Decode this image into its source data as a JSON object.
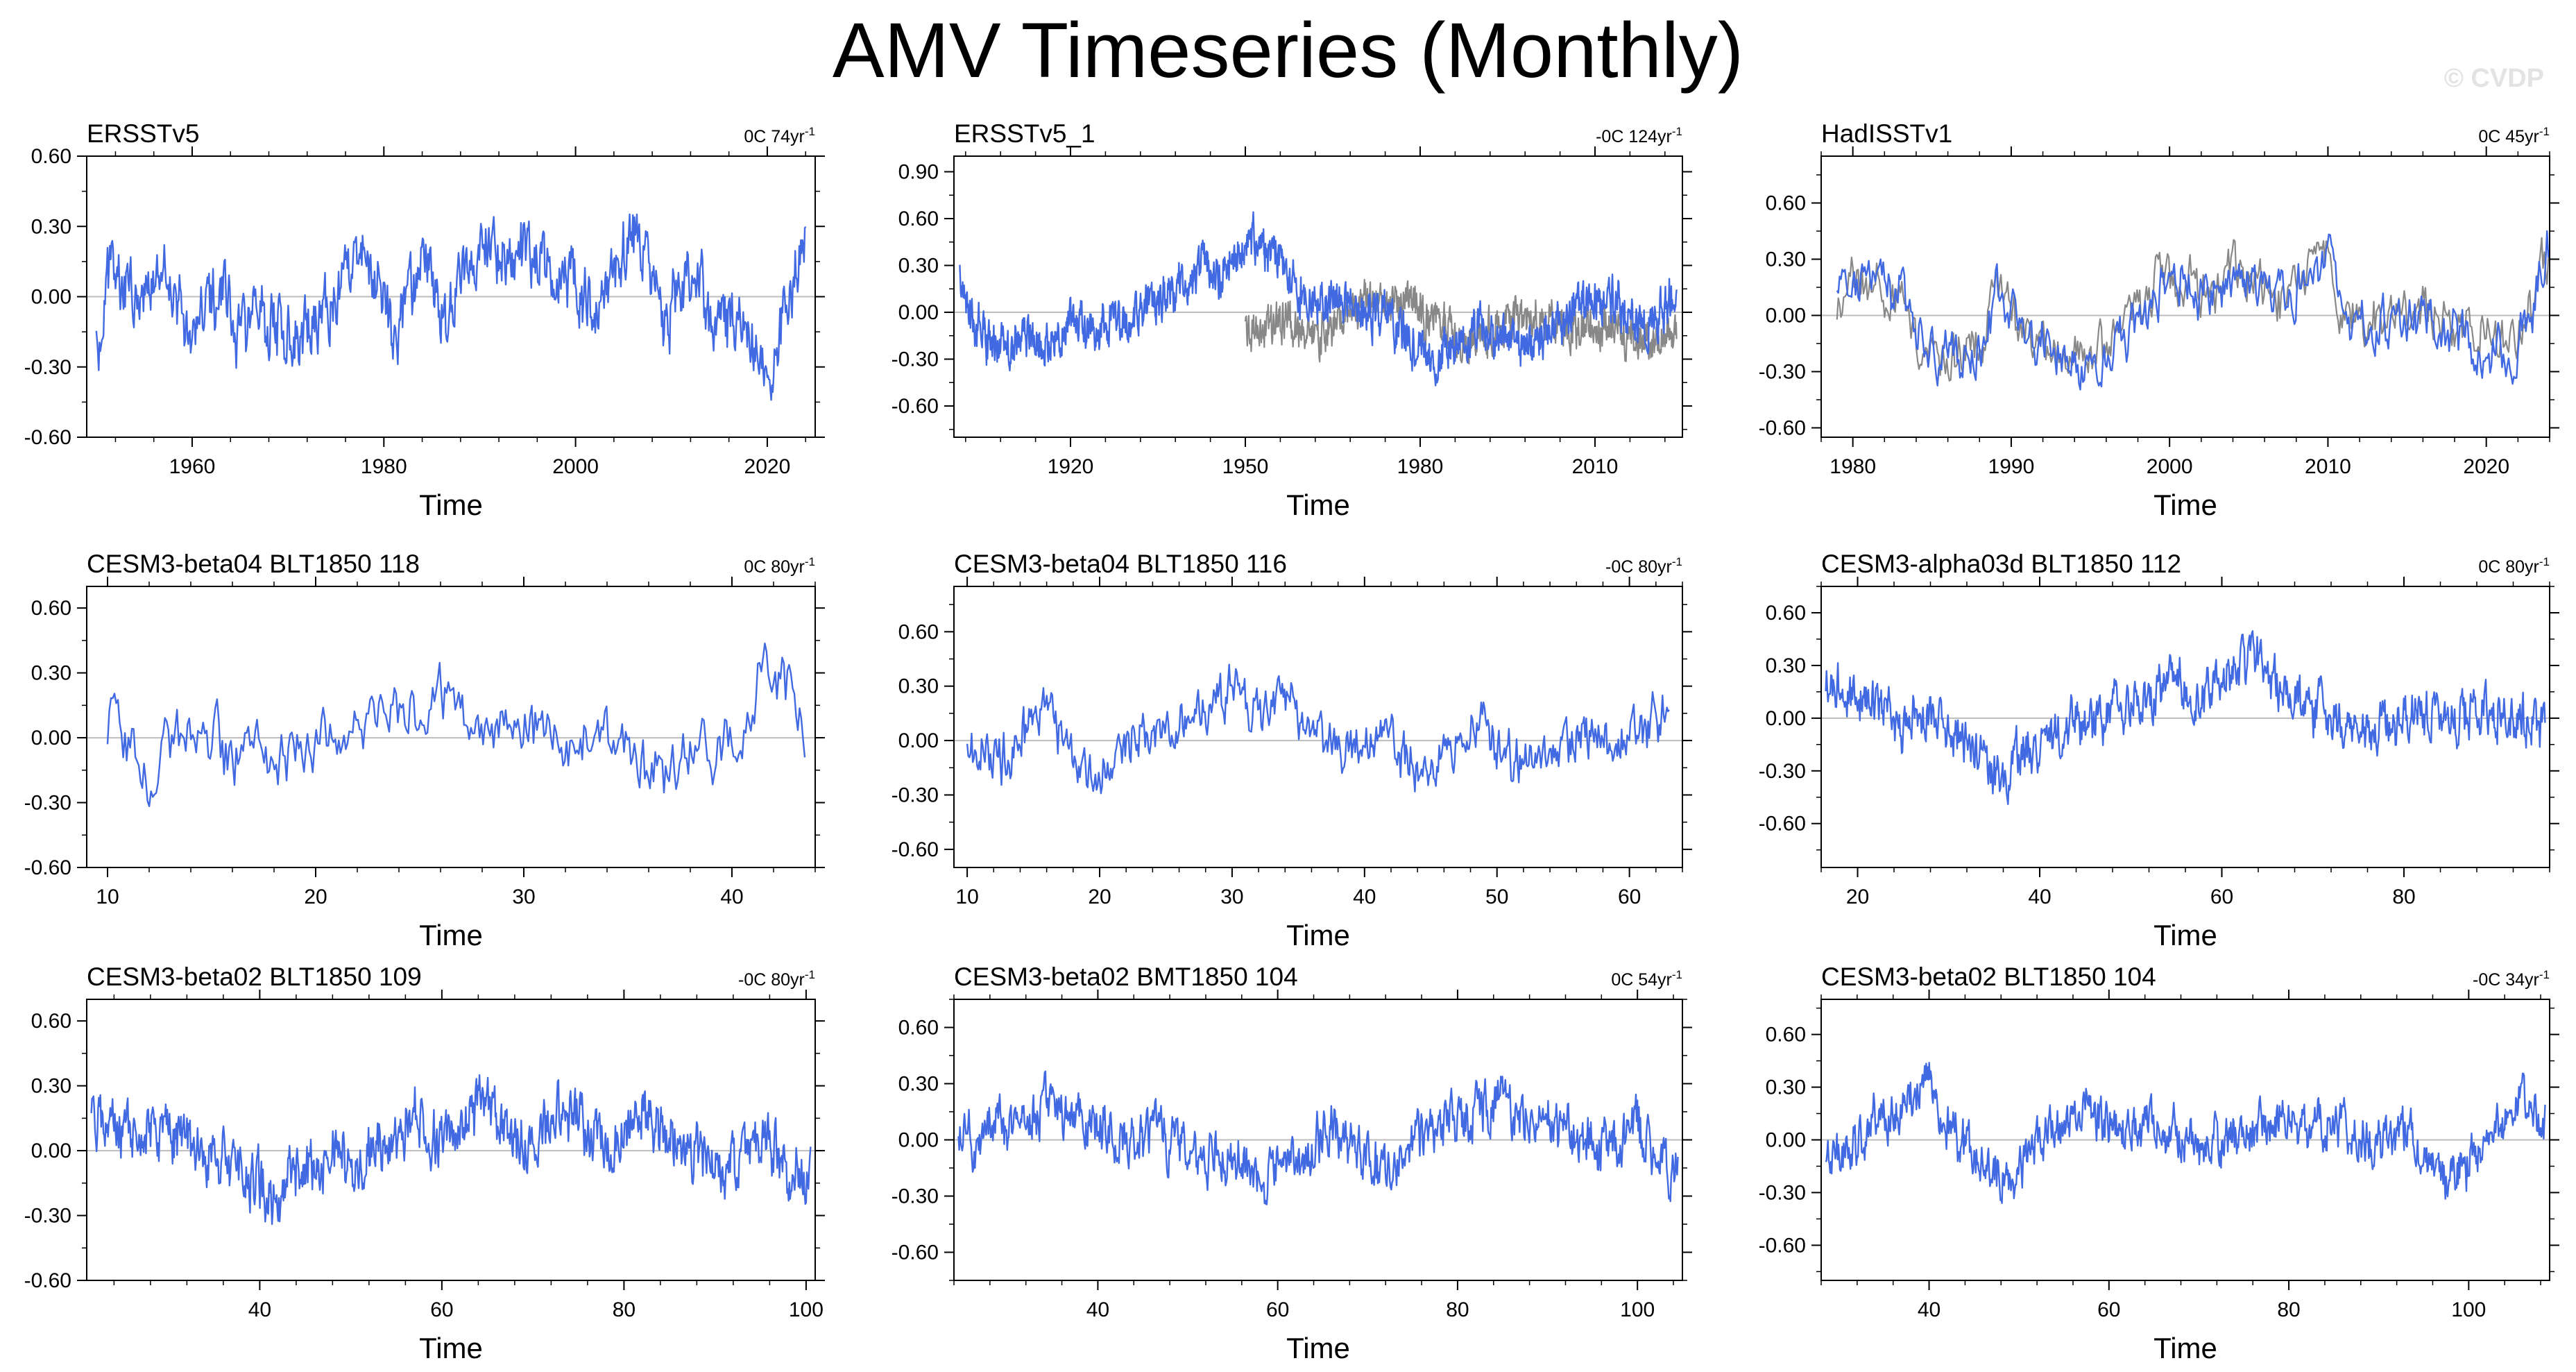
{
  "title": "AMV Timeseries (Monthly)",
  "watermark": "© CVDP",
  "colors": {
    "series": "#4169e1",
    "obs_secondary": "#888888",
    "zero_line": "#bdbdbd",
    "axis": "#000000"
  },
  "chart_data": [
    {
      "type": "line",
      "title": "ERSSTv5",
      "trend_text": "0C 74yr",
      "trend_sup": "-1",
      "xlabel": "Time",
      "ylabel": "",
      "xlim": [
        1949,
        2025
      ],
      "ylim": [
        -0.6,
        0.6
      ],
      "xticks": [
        1960,
        1980,
        2000,
        2020
      ],
      "xtick_labels": [
        "1960",
        "1980",
        "2000",
        "2020"
      ],
      "yticks": [
        -0.6,
        -0.3,
        0.0,
        0.3,
        0.6
      ],
      "ytick_labels": [
        "-0.60",
        "-0.30",
        "0.00",
        "0.30",
        "0.60"
      ],
      "series": [
        {
          "name": "ERSSTv5",
          "x_start": 1950,
          "x_end": 2024,
          "anchors": [
            -0.2,
            0.12,
            0.05,
            -0.05,
            0.1,
            0.0,
            -0.2,
            -0.1,
            0.05,
            -0.15,
            -0.12,
            -0.1,
            -0.15,
            -0.2,
            -0.1,
            0.0,
            0.12,
            0.18,
            0.05,
            -0.18,
            0.05,
            0.15,
            -0.1,
            0.05,
            0.2,
            0.25,
            0.15,
            0.2,
            0.15,
            0.08,
            0.1,
            0.0,
            -0.05,
            0.15,
            0.25,
            0.15,
            -0.1,
            0.05,
            0.05,
            -0.1,
            -0.12,
            -0.15,
            -0.2,
            -0.25,
            0.0,
            0.3
          ]
        }
      ]
    },
    {
      "type": "line",
      "title": "ERSSTv5_1",
      "trend_text": "-0C 124yr",
      "trend_sup": "-1",
      "xlabel": "Time",
      "ylabel": "",
      "xlim": [
        1900,
        2025
      ],
      "ylim": [
        -0.8,
        1.0
      ],
      "xticks": [
        1920,
        1950,
        1980,
        2010
      ],
      "xtick_labels": [
        "1920",
        "1950",
        "1980",
        "2010"
      ],
      "yticks": [
        -0.6,
        -0.3,
        0.0,
        0.3,
        0.6,
        0.9
      ],
      "ytick_labels": [
        "-0.60",
        "-0.30",
        "0.00",
        "0.30",
        "0.60",
        "0.90"
      ],
      "series": [
        {
          "name": "ERSSTv5_1",
          "x_start": 1901,
          "x_end": 2024,
          "anchors": [
            0.2,
            -0.1,
            -0.2,
            -0.25,
            -0.15,
            -0.2,
            -0.15,
            -0.05,
            -0.1,
            -0.05,
            -0.1,
            0.0,
            0.05,
            0.15,
            0.2,
            0.3,
            0.25,
            0.4,
            0.45,
            0.4,
            0.3,
            0.1,
            0.05,
            0.1,
            0.05,
            0.0,
            -0.05,
            -0.1,
            -0.2,
            -0.3,
            -0.25,
            -0.15,
            -0.1,
            -0.2,
            -0.15,
            -0.25,
            -0.15,
            -0.1,
            0.05,
            0.05,
            0.1,
            0.0,
            -0.1,
            0.0,
            0.15
          ]
        },
        {
          "name": "ERSSTv5_1 (secondary)",
          "x_start": 1950,
          "x_end": 2024,
          "anchors": [
            -0.15,
            -0.1,
            -0.05,
            -0.1,
            -0.15,
            -0.05,
            0.0,
            0.05,
            0.05,
            0.05,
            -0.05,
            -0.1,
            -0.15,
            -0.15,
            -0.1,
            -0.05,
            -0.05,
            -0.05,
            -0.1,
            -0.1,
            -0.1,
            -0.15,
            -0.15,
            -0.2,
            -0.15
          ]
        }
      ]
    },
    {
      "type": "line",
      "title": "HadISSTv1",
      "trend_text": "0C 45yr",
      "trend_sup": "-1",
      "xlabel": "Time",
      "ylabel": "",
      "xlim": [
        1978,
        2024
      ],
      "ylim": [
        -0.65,
        0.85
      ],
      "xticks": [
        1980,
        1990,
        2000,
        2010,
        2020
      ],
      "xtick_labels": [
        "1980",
        "1990",
        "2000",
        "2010",
        "2020"
      ],
      "yticks": [
        -0.6,
        -0.3,
        0.0,
        0.3,
        0.6
      ],
      "ytick_labels": [
        "-0.60",
        "-0.30",
        "0.00",
        "0.30",
        "0.60"
      ],
      "series": [
        {
          "name": "HadISSTv1",
          "x_start": 1979,
          "x_end": 2024,
          "anchors": [
            0.05,
            0.15,
            0.2,
            0.1,
            -0.1,
            -0.2,
            -0.25,
            -0.2,
            0.1,
            -0.05,
            -0.15,
            -0.2,
            -0.3,
            -0.25,
            -0.1,
            -0.05,
            0.15,
            0.25,
            0.1,
            0.15,
            0.2,
            0.1,
            0.05,
            0.15,
            0.3,
            0.0,
            -0.1,
            -0.05,
            -0.05,
            0.0,
            -0.05,
            -0.1,
            -0.15,
            -0.2,
            0.0,
            0.4
          ]
        },
        {
          "name": "HadISSTv1 (secondary)",
          "x_start": 1979,
          "x_end": 2024,
          "anchors": [
            0.1,
            0.2,
            0.15,
            0.05,
            -0.15,
            -0.2,
            -0.2,
            -0.15,
            0.15,
            -0.05,
            -0.1,
            -0.2,
            -0.25,
            -0.2,
            -0.05,
            0.0,
            0.2,
            0.25,
            0.15,
            0.2,
            0.25,
            0.15,
            0.1,
            0.2,
            0.3,
            0.05,
            -0.05,
            0.0,
            0.0,
            0.05,
            0.0,
            -0.05,
            -0.1,
            -0.15,
            0.05,
            0.3
          ]
        }
      ]
    },
    {
      "type": "line",
      "title": "CESM3-beta04 BLT1850 118",
      "trend_text": "0C 80yr",
      "trend_sup": "-1",
      "xlabel": "Time",
      "ylabel": "",
      "xlim": [
        9,
        44
      ],
      "ylim": [
        -0.6,
        0.7
      ],
      "xticks": [
        10,
        20,
        30,
        40
      ],
      "xtick_labels": [
        "10",
        "20",
        "30",
        "40"
      ],
      "yticks": [
        -0.6,
        -0.3,
        0.0,
        0.3,
        0.6
      ],
      "ytick_labels": [
        "-0.60",
        "-0.30",
        "0.00",
        "0.30",
        "0.60"
      ],
      "series": [
        {
          "name": "CESM3-beta04 BLT1850 118",
          "x_start": 10,
          "x_end": 43.5,
          "anchors": [
            0.05,
            0.0,
            -0.15,
            -0.05,
            0.05,
            0.0,
            -0.1,
            -0.05,
            -0.15,
            -0.05,
            0.0,
            0.05,
            0.05,
            0.15,
            0.1,
            0.15,
            0.2,
            0.1,
            0.05,
            0.1,
            0.05,
            0.0,
            -0.05,
            0.0,
            -0.05,
            -0.1,
            -0.15,
            -0.1,
            -0.05,
            -0.05,
            0.05,
            0.3,
            0.25,
            0.05
          ]
        }
      ]
    },
    {
      "type": "line",
      "title": "CESM3-beta04 BLT1850 116",
      "trend_text": "-0C 80yr",
      "trend_sup": "-1",
      "xlabel": "Time",
      "ylabel": "",
      "xlim": [
        9,
        64
      ],
      "ylim": [
        -0.7,
        0.85
      ],
      "xticks": [
        10,
        20,
        30,
        40,
        50,
        60
      ],
      "xtick_labels": [
        "10",
        "20",
        "30",
        "40",
        "50",
        "60"
      ],
      "yticks": [
        -0.6,
        -0.3,
        0.0,
        0.3,
        0.6
      ],
      "ytick_labels": [
        "-0.60",
        "-0.30",
        "0.00",
        "0.30",
        "0.60"
      ],
      "series": [
        {
          "name": "CESM3-beta04 BLT1850 116",
          "x_start": 10,
          "x_end": 63,
          "anchors": [
            0.0,
            -0.05,
            -0.1,
            0.05,
            0.15,
            0.05,
            -0.25,
            -0.1,
            -0.05,
            0.05,
            0.0,
            0.1,
            0.15,
            0.2,
            0.3,
            0.15,
            0.15,
            0.2,
            0.1,
            0.05,
            -0.05,
            -0.05,
            0.0,
            -0.1,
            -0.15,
            -0.05,
            0.0,
            0.05,
            -0.05,
            -0.1,
            -0.2,
            -0.1,
            0.0,
            0.05,
            0.0,
            0.05,
            0.1,
            0.15
          ]
        }
      ]
    },
    {
      "type": "line",
      "title": "CESM3-alpha03d BLT1850 112",
      "trend_text": "0C 80yr",
      "trend_sup": "-1",
      "xlabel": "Time",
      "ylabel": "",
      "xlim": [
        16,
        96
      ],
      "ylim": [
        -0.85,
        0.75
      ],
      "xticks": [
        20,
        40,
        60,
        80
      ],
      "xtick_labels": [
        "20",
        "40",
        "60",
        "80"
      ],
      "yticks": [
        -0.6,
        -0.3,
        0.0,
        0.3,
        0.6
      ],
      "ytick_labels": [
        "-0.60",
        "-0.30",
        "0.00",
        "0.30",
        "0.60"
      ],
      "series": [
        {
          "name": "CESM3-alpha03d BLT1850 112",
          "x_start": 16.5,
          "x_end": 95.5,
          "anchors": [
            0.2,
            0.15,
            0.1,
            0.05,
            -0.05,
            0.0,
            -0.05,
            -0.1,
            -0.2,
            -0.35,
            -0.2,
            -0.15,
            -0.1,
            -0.05,
            0.0,
            0.05,
            0.1,
            0.15,
            0.2,
            0.15,
            0.2,
            0.25,
            0.35,
            0.2,
            0.1,
            0.05,
            0.0,
            -0.05,
            -0.1,
            -0.05,
            0.0,
            0.05,
            -0.05,
            0.0,
            0.05,
            0.05,
            0.0,
            -0.05
          ]
        }
      ]
    },
    {
      "type": "line",
      "title": "CESM3-beta02 BLT1850 109",
      "trend_text": "-0C 80yr",
      "trend_sup": "-1",
      "xlabel": "Time",
      "ylabel": "",
      "xlim": [
        21,
        101
      ],
      "ylim": [
        -0.6,
        0.7
      ],
      "xticks": [
        40,
        60,
        80,
        100
      ],
      "xtick_labels": [
        "40",
        "60",
        "80",
        "100"
      ],
      "yticks": [
        -0.6,
        -0.3,
        0.0,
        0.3,
        0.6
      ],
      "ytick_labels": [
        "-0.60",
        "-0.30",
        "0.00",
        "0.30",
        "0.60"
      ],
      "series": [
        {
          "name": "CESM3-beta02 BLT1850 109",
          "x_start": 21.5,
          "x_end": 100.5,
          "anchors": [
            0.15,
            0.1,
            0.05,
            0.1,
            0.05,
            0.0,
            -0.05,
            -0.1,
            -0.15,
            -0.2,
            -0.1,
            -0.05,
            0.0,
            -0.1,
            0.05,
            0.1,
            0.15,
            0.05,
            0.1,
            0.2,
            0.1,
            0.05,
            0.1,
            0.15,
            0.1,
            0.05,
            0.1,
            0.15,
            0.05,
            0.0,
            -0.05,
            -0.1,
            0.0,
            0.05,
            -0.1,
            -0.1
          ]
        }
      ]
    },
    {
      "type": "line",
      "title": "CESM3-beta02 BMT1850 104",
      "trend_text": "0C 54yr",
      "trend_sup": "-1",
      "xlabel": "Time",
      "ylabel": "",
      "xlim": [
        24,
        105
      ],
      "ylim": [
        -0.75,
        0.75
      ],
      "xticks": [
        40,
        60,
        80,
        100
      ],
      "xtick_labels": [
        "40",
        "60",
        "80",
        "100"
      ],
      "yticks": [
        -0.6,
        -0.3,
        0.0,
        0.3,
        0.6
      ],
      "ytick_labels": [
        "-0.60",
        "-0.30",
        "0.00",
        "0.30",
        "0.60"
      ],
      "series": [
        {
          "name": "CESM3-beta02 BMT1850 104",
          "x_start": 24.5,
          "x_end": 104.5,
          "anchors": [
            0.0,
            -0.05,
            0.1,
            0.05,
            0.15,
            0.2,
            0.15,
            0.1,
            0.05,
            0.0,
            0.05,
            -0.05,
            -0.1,
            -0.05,
            -0.1,
            -0.2,
            -0.15,
            -0.05,
            0.0,
            0.05,
            -0.05,
            -0.15,
            -0.1,
            0.0,
            0.05,
            0.1,
            0.15,
            0.2,
            0.15,
            0.1,
            0.05,
            0.0,
            -0.05,
            0.0,
            0.05,
            -0.1,
            -0.15
          ]
        }
      ]
    },
    {
      "type": "line",
      "title": "CESM3-beta02 BLT1850 104",
      "trend_text": "-0C 34yr",
      "trend_sup": "-1",
      "xlabel": "Time",
      "ylabel": "",
      "xlim": [
        28,
        109
      ],
      "ylim": [
        -0.8,
        0.8
      ],
      "xticks": [
        40,
        60,
        80,
        100
      ],
      "xtick_labels": [
        "40",
        "60",
        "80",
        "100"
      ],
      "yticks": [
        -0.6,
        -0.3,
        0.0,
        0.3,
        0.6
      ],
      "ytick_labels": [
        "-0.60",
        "-0.30",
        "0.00",
        "0.30",
        "0.60"
      ],
      "series": [
        {
          "name": "CESM3-beta02 BLT1850 104",
          "x_start": 28.5,
          "x_end": 108.5,
          "anchors": [
            -0.2,
            -0.05,
            0.05,
            0.1,
            0.2,
            0.3,
            0.1,
            -0.05,
            -0.15,
            -0.2,
            -0.1,
            0.0,
            0.1,
            0.15,
            0.1,
            0.05,
            0.1,
            0.05,
            0.0,
            -0.05,
            0.0,
            0.05,
            0.1,
            0.15,
            0.05,
            0.1,
            0.05,
            0.0,
            -0.05,
            0.05,
            -0.1,
            -0.2,
            -0.15,
            0.0,
            0.1,
            0.2,
            0.1
          ]
        }
      ]
    }
  ]
}
